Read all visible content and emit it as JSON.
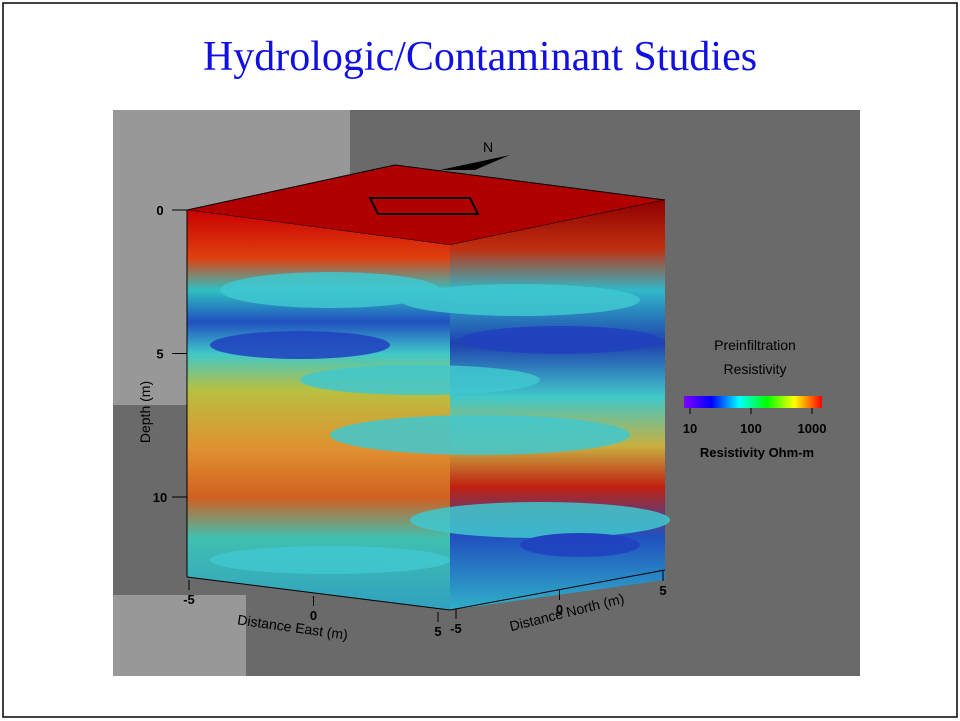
{
  "title": "Hydrologic/Contaminant Studies",
  "figure": {
    "north_label": "N",
    "depth_axis": {
      "label": "Depth (m)",
      "ticks": [
        0,
        5,
        10
      ]
    },
    "east_axis": {
      "label": "Distance East (m)",
      "ticks": [
        -5,
        0,
        5
      ]
    },
    "north_axis": {
      "label": "Distance North (m)",
      "ticks": [
        -5,
        0,
        5
      ]
    },
    "legend": {
      "title": [
        "Preinfiltration",
        "Resistivity"
      ],
      "ticks": [
        10,
        100,
        1000
      ],
      "unit_label": "Resistivity Ohm-m"
    }
  }
}
